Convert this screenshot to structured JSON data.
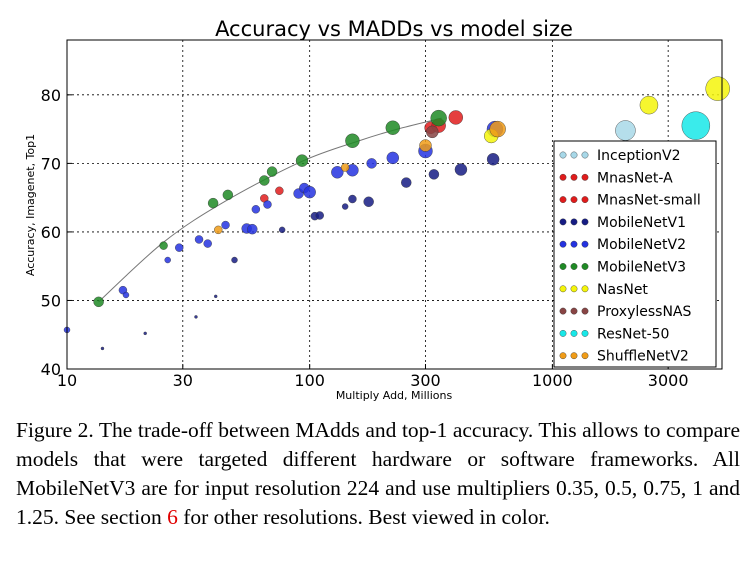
{
  "chart_data": {
    "type": "scatter",
    "title": "Accuracy vs MADDs vs model size",
    "xlabel": "Multiply Add, Millions",
    "ylabel": "Accuracy, Imagenet, Top1",
    "xscale": "log",
    "xlim": [
      10,
      5000
    ],
    "ylim": [
      40,
      88
    ],
    "xticks": [
      10,
      30,
      100,
      300,
      1000,
      3000
    ],
    "yticks": [
      40,
      50,
      60,
      70,
      80
    ],
    "xtick_labels": [
      "10",
      "30",
      "100",
      "300",
      "1000",
      "3000"
    ],
    "ytick_labels": [
      "40",
      "50",
      "60",
      "70",
      "80"
    ],
    "grid": true,
    "legend_position": "right",
    "trend_curve": [
      [
        13.5,
        49.8
      ],
      [
        25,
        58.5
      ],
      [
        45,
        64.5
      ],
      [
        93,
        70.3
      ],
      [
        160,
        73.3
      ],
      [
        230,
        75.0
      ],
      [
        350,
        76.6
      ]
    ],
    "series": [
      {
        "name": "InceptionV2",
        "color": "#a8d8e8",
        "points": [
          [
            2000,
            74.8,
            10
          ]
        ]
      },
      {
        "name": "MnasNet-A",
        "color": "#e01c1c",
        "points": [
          [
            315,
            75.2,
            6
          ],
          [
            340,
            75.5,
            7
          ],
          [
            400,
            76.7,
            7
          ]
        ]
      },
      {
        "name": "MnasNet-small",
        "color": "#e01c1c",
        "points": [
          [
            65,
            64.9,
            4
          ],
          [
            75,
            66.0,
            4
          ]
        ]
      },
      {
        "name": "MobileNetV1",
        "color": "#161c84",
        "points": [
          [
            14,
            43.0,
            1.5
          ],
          [
            21,
            45.2,
            1.5
          ],
          [
            34,
            47.6,
            1.5
          ],
          [
            41,
            50.6,
            1.5
          ],
          [
            49,
            55.9,
            3
          ],
          [
            77,
            60.3,
            3
          ],
          [
            105,
            62.3,
            4
          ],
          [
            110,
            62.4,
            4
          ],
          [
            140,
            63.7,
            3
          ],
          [
            150,
            64.8,
            4
          ],
          [
            175,
            64.4,
            5
          ],
          [
            250,
            67.2,
            5
          ],
          [
            325,
            68.4,
            5
          ],
          [
            420,
            69.1,
            6
          ],
          [
            570,
            70.6,
            6
          ]
        ]
      },
      {
        "name": "MobileNetV2",
        "color": "#2432e0",
        "points": [
          [
            10,
            45.7,
            3
          ],
          [
            17,
            51.5,
            4
          ],
          [
            17.5,
            50.8,
            3
          ],
          [
            26,
            55.9,
            3
          ],
          [
            29,
            57.7,
            4
          ],
          [
            35,
            58.9,
            4
          ],
          [
            38,
            58.3,
            4
          ],
          [
            45,
            61.0,
            4
          ],
          [
            55,
            60.5,
            5
          ],
          [
            58,
            60.4,
            5
          ],
          [
            60,
            63.3,
            4
          ],
          [
            67,
            64.0,
            4
          ],
          [
            90,
            65.6,
            5
          ],
          [
            95,
            66.4,
            5
          ],
          [
            100,
            65.8,
            6
          ],
          [
            130,
            68.7,
            6
          ],
          [
            150,
            69.0,
            6
          ],
          [
            180,
            70.0,
            5
          ],
          [
            220,
            70.8,
            6
          ],
          [
            300,
            71.8,
            7
          ],
          [
            580,
            75.0,
            8
          ]
        ]
      },
      {
        "name": "MobileNetV3",
        "color": "#1f8a25",
        "points": [
          [
            13.5,
            49.8,
            5
          ],
          [
            25,
            58.0,
            4
          ],
          [
            40,
            64.2,
            5
          ],
          [
            46,
            65.4,
            5
          ],
          [
            65,
            67.5,
            5
          ],
          [
            70,
            68.8,
            5
          ],
          [
            93,
            70.4,
            6
          ],
          [
            150,
            73.3,
            7
          ],
          [
            220,
            75.2,
            7
          ],
          [
            340,
            76.6,
            8
          ]
        ]
      },
      {
        "name": "NasNet",
        "color": "#f4f40a",
        "points": [
          [
            560,
            74.0,
            7
          ],
          [
            2500,
            78.5,
            9
          ],
          [
            4800,
            80.9,
            12
          ]
        ]
      },
      {
        "name": "ProxylessNAS",
        "color": "#884444",
        "points": [
          [
            320,
            74.6,
            6
          ]
        ]
      },
      {
        "name": "ResNet-50",
        "color": "#18e8e8",
        "points": [
          [
            3900,
            75.5,
            14
          ]
        ]
      },
      {
        "name": "ShuffleNetV2",
        "color": "#f09c18",
        "points": [
          [
            42,
            60.3,
            4
          ],
          [
            140,
            69.4,
            4
          ],
          [
            300,
            72.6,
            6
          ],
          [
            595,
            75.0,
            8
          ]
        ]
      }
    ]
  },
  "caption": {
    "text_before_ref": "Figure 2. The trade-off between MAdds and top-1 accuracy. This allows to compare models that were targeted different hardware or software frameworks.  All MobileNetV3 are for input resolution 224 and use multipliers 0.35, 0.5, 0.75, 1 and 1.25. See section ",
    "ref": "6",
    "text_after_ref": " for other resolutions. Best viewed in color."
  }
}
